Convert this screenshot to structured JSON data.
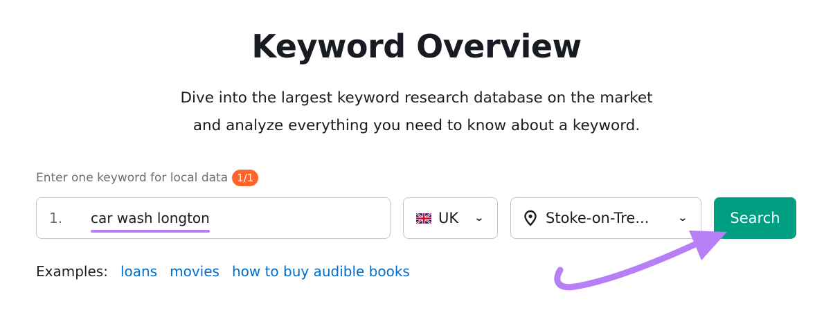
{
  "header": {
    "title": "Keyword Overview",
    "subtitle_line1": "Dive into the largest keyword research database on the market",
    "subtitle_line2": "and analyze everything you need to know about a keyword."
  },
  "form": {
    "label": "Enter one keyword for local data",
    "badge": "1/1",
    "keyword_number": "1.",
    "keyword_value": "car wash longton",
    "database": "UK",
    "location": "Stoke-on-Tre...",
    "search_label": "Search"
  },
  "examples": {
    "label": "Examples:",
    "items": [
      "loans",
      "movies",
      "how to buy audible books"
    ]
  },
  "colors": {
    "accent": "#009f81",
    "badge": "#ff642d",
    "link": "#006dca",
    "annotation": "#b77ff5"
  }
}
